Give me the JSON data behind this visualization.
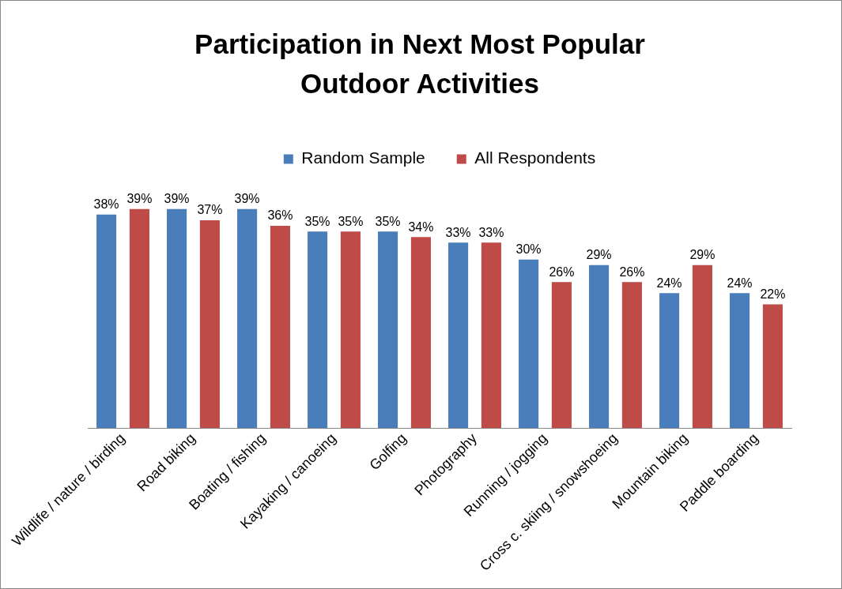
{
  "chart_data": {
    "type": "bar",
    "title": "Participation in Next Most Popular Outdoor Activities",
    "categories": [
      "Wildlife / nature / birding",
      "Road biking",
      "Boating / fishing",
      "Kayaking / canoeing",
      "Golfing",
      "Photography",
      "Running / jogging",
      "Cross c. skiing / snowshoeing",
      "Mountain biking",
      "Paddle boarding"
    ],
    "series": [
      {
        "name": "Random Sample",
        "color": "#4a7ebb",
        "values": [
          38,
          39,
          39,
          35,
          35,
          33,
          30,
          29,
          24,
          24
        ],
        "value_labels": [
          "38%",
          "39%",
          "39%",
          "35%",
          "35%",
          "33%",
          "30%",
          "29%",
          "24%",
          "24%"
        ]
      },
      {
        "name": "All Respondents",
        "color": "#be4b48",
        "values": [
          39,
          37,
          36,
          35,
          34,
          33,
          26,
          26,
          29,
          22
        ],
        "value_labels": [
          "39%",
          "37%",
          "36%",
          "35%",
          "34%",
          "33%",
          "26%",
          "26%",
          "29%",
          "22%"
        ]
      }
    ],
    "legend": "top",
    "grid": false,
    "tick_labels": "x"
  }
}
